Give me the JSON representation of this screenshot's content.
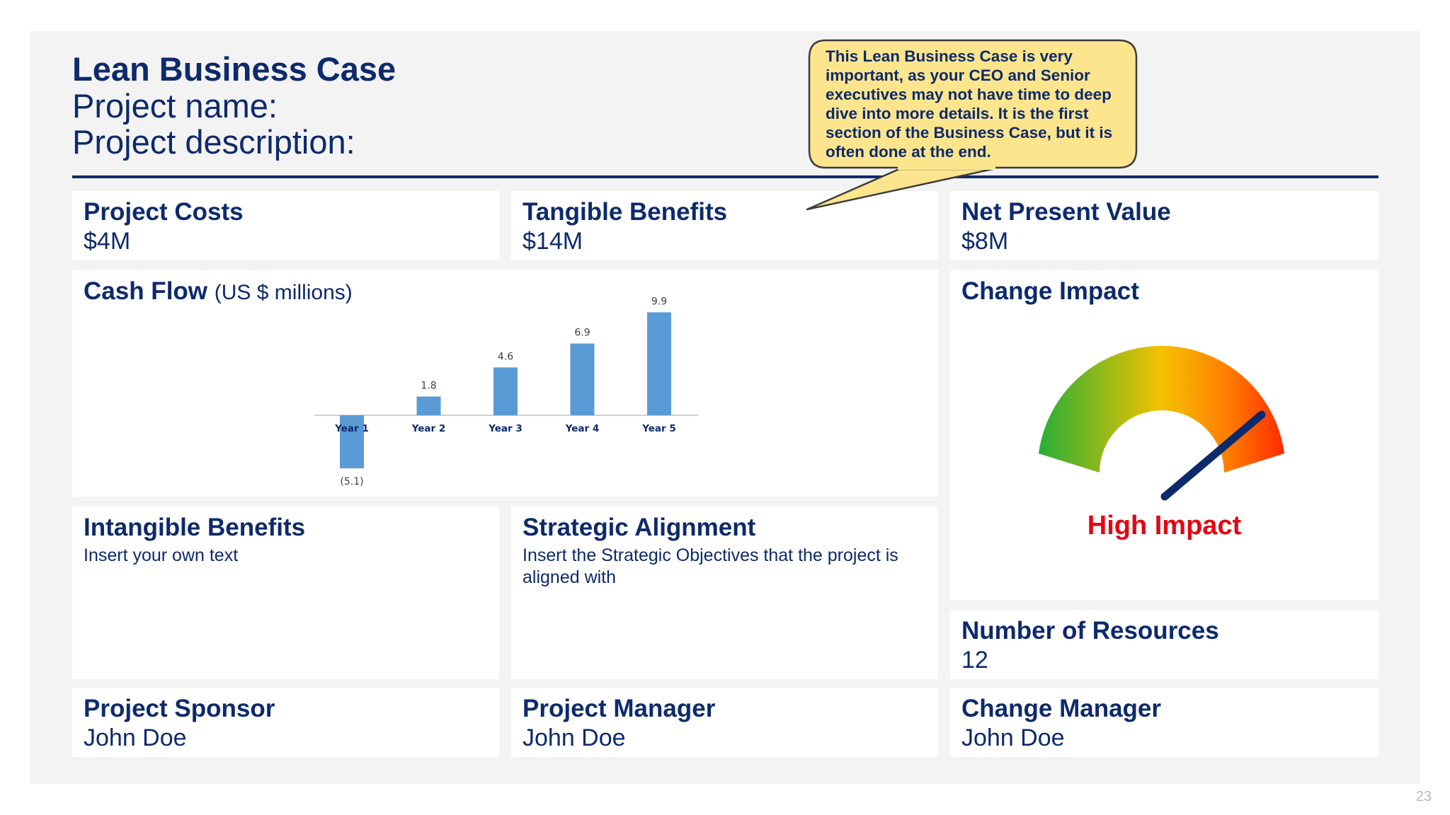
{
  "header": {
    "title": "Lean Business Case",
    "project_name": "Project name:",
    "project_description": "Project description:"
  },
  "callout": {
    "text": "This Lean Business Case is very important, as your CEO and Senior executives may not have time to deep dive into more details. It is the first section of the Business Case, but it is often done at the end."
  },
  "cards": {
    "project_costs": {
      "title": "Project Costs",
      "value": "$4M"
    },
    "tangible_benefits": {
      "title": "Tangible Benefits",
      "value": "$14M"
    },
    "npv": {
      "title": "Net Present Value",
      "value": "$8M"
    },
    "cash_flow": {
      "title": "Cash Flow",
      "unit": "(US $ millions)"
    },
    "change_impact": {
      "title": "Change Impact",
      "label": "High Impact",
      "level": "high"
    },
    "intangible_benefits": {
      "title": "Intangible Benefits",
      "text": "Insert your own text"
    },
    "strategic_alignment": {
      "title": "Strategic Alignment",
      "text": "Insert the Strategic Objectives that the project is aligned with"
    },
    "resources": {
      "title": "Number of Resources",
      "value": "12"
    },
    "sponsor": {
      "title": "Project Sponsor",
      "value": "John Doe"
    },
    "manager": {
      "title": "Project Manager",
      "value": "John Doe"
    },
    "change_manager": {
      "title": "Change Manager",
      "value": "John Doe"
    }
  },
  "chart_data": {
    "type": "bar",
    "categories": [
      "Year 1",
      "Year 2",
      "Year 3",
      "Year 4",
      "Year 5"
    ],
    "values": [
      -5.1,
      1.8,
      4.6,
      6.9,
      9.9
    ],
    "labels": [
      "(5.1)",
      "1.8",
      "4.6",
      "6.9",
      "9.9"
    ],
    "title": "Cash Flow",
    "ylabel": "(US $ millions)",
    "color": "#5b9bd5"
  },
  "page_number": "23",
  "colors": {
    "navy": "#0d2a6b",
    "impact_red": "#e30613",
    "callout_fill": "#fde58e"
  }
}
